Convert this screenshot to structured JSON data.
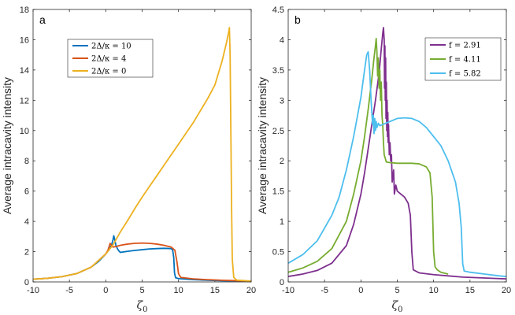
{
  "chart_data": [
    {
      "type": "line",
      "panel_label": "a",
      "ylabel": "Average intracavity intensity",
      "xlabel": "ζ0",
      "xlim": [
        -10,
        20
      ],
      "ylim": [
        0,
        18
      ],
      "xticks": [
        "-10",
        "-5",
        "0",
        "5",
        "10",
        "15",
        "20"
      ],
      "yticks": [
        "0",
        "2",
        "4",
        "6",
        "8",
        "10",
        "12",
        "14",
        "16",
        "18"
      ],
      "legend_position": "top-left",
      "series": [
        {
          "name": "2Δ/κ = 10",
          "color": "#0072BD",
          "points": [
            [
              -10,
              0.18
            ],
            [
              -8,
              0.24
            ],
            [
              -6,
              0.35
            ],
            [
              -4,
              0.55
            ],
            [
              -2,
              0.98
            ],
            [
              -1,
              1.35
            ],
            [
              0,
              1.85
            ],
            [
              0.5,
              2.15
            ],
            [
              0.8,
              2.45
            ],
            [
              1.0,
              2.8
            ],
            [
              1.1,
              3.05
            ],
            [
              1.2,
              2.85
            ],
            [
              1.4,
              2.4
            ],
            [
              1.6,
              2.2
            ],
            [
              1.8,
              2.05
            ],
            [
              2.0,
              1.95
            ],
            [
              3,
              2.02
            ],
            [
              4,
              2.08
            ],
            [
              5,
              2.13
            ],
            [
              6,
              2.18
            ],
            [
              7,
              2.2
            ],
            [
              8,
              2.22
            ],
            [
              9,
              2.2
            ],
            [
              9.2,
              2.1
            ],
            [
              9.35,
              1.6
            ],
            [
              9.45,
              0.6
            ],
            [
              9.6,
              0.28
            ],
            [
              10,
              0.22
            ],
            [
              12,
              0.15
            ],
            [
              14,
              0.11
            ],
            [
              16,
              0.08
            ],
            [
              18,
              0.06
            ],
            [
              20,
              0.05
            ]
          ]
        },
        {
          "name": "2Δ/κ = 4",
          "color": "#D95319",
          "points": [
            [
              -10,
              0.18
            ],
            [
              -8,
              0.24
            ],
            [
              -6,
              0.35
            ],
            [
              -4,
              0.55
            ],
            [
              -2,
              0.98
            ],
            [
              0,
              1.85
            ],
            [
              0.3,
              2.1
            ],
            [
              0.5,
              2.4
            ],
            [
              0.6,
              2.55
            ],
            [
              0.8,
              2.4
            ],
            [
              1.0,
              2.3
            ],
            [
              1.5,
              2.35
            ],
            [
              2,
              2.42
            ],
            [
              3,
              2.5
            ],
            [
              4,
              2.55
            ],
            [
              5,
              2.57
            ],
            [
              6,
              2.55
            ],
            [
              7,
              2.5
            ],
            [
              8,
              2.42
            ],
            [
              9,
              2.3
            ],
            [
              9.5,
              2.1
            ],
            [
              9.8,
              1.3
            ],
            [
              10.0,
              0.55
            ],
            [
              10.3,
              0.3
            ],
            [
              12,
              0.2
            ],
            [
              14,
              0.15
            ],
            [
              16,
              0.11
            ],
            [
              18,
              0.08
            ],
            [
              20,
              0.06
            ]
          ]
        },
        {
          "name": "2Δ/κ = 0",
          "color": "#EDB120",
          "points": [
            [
              -10,
              0.18
            ],
            [
              -8,
              0.24
            ],
            [
              -6,
              0.35
            ],
            [
              -4,
              0.55
            ],
            [
              -2,
              0.98
            ],
            [
              0,
              1.85
            ],
            [
              1,
              2.45
            ],
            [
              2,
              3.3
            ],
            [
              3,
              4.05
            ],
            [
              4,
              4.85
            ],
            [
              5,
              5.6
            ],
            [
              6,
              6.3
            ],
            [
              7,
              7.0
            ],
            [
              8,
              7.7
            ],
            [
              9,
              8.4
            ],
            [
              10,
              9.1
            ],
            [
              11,
              9.8
            ],
            [
              12,
              10.5
            ],
            [
              13,
              11.3
            ],
            [
              14,
              12.1
            ],
            [
              15,
              13.0
            ],
            [
              16,
              14.6
            ],
            [
              16.6,
              15.8
            ],
            [
              16.9,
              16.5
            ],
            [
              17.0,
              16.8
            ],
            [
              17.1,
              15.0
            ],
            [
              17.2,
              10.0
            ],
            [
              17.3,
              5.0
            ],
            [
              17.4,
              1.5
            ],
            [
              17.6,
              0.3
            ],
            [
              18,
              0.12
            ],
            [
              20,
              0.05
            ]
          ]
        }
      ]
    },
    {
      "type": "line",
      "panel_label": "b",
      "ylabel": "Average intracavity intensity",
      "xlabel": "ζ0",
      "xlim": [
        -10,
        20
      ],
      "ylim": [
        0,
        4.5
      ],
      "xticks": [
        "-10",
        "-5",
        "0",
        "5",
        "10",
        "15",
        "20"
      ],
      "yticks": [
        "0",
        "0.5",
        "1",
        "1.5",
        "2",
        "2.5",
        "3",
        "3.5",
        "4",
        "4.5"
      ],
      "legend_position": "top-right",
      "series": [
        {
          "name": "f = 2.91",
          "color": "#7E2F8E",
          "points": [
            [
              -10,
              0.09
            ],
            [
              -8,
              0.13
            ],
            [
              -6,
              0.19
            ],
            [
              -4,
              0.31
            ],
            [
              -2,
              0.6
            ],
            [
              -1,
              0.95
            ],
            [
              0,
              1.45
            ],
            [
              0.5,
              1.8
            ],
            [
              1,
              2.2
            ],
            [
              1.5,
              2.6
            ],
            [
              2,
              3.0
            ],
            [
              2.5,
              3.45
            ],
            [
              2.8,
              3.85
            ],
            [
              3.0,
              4.1
            ],
            [
              3.1,
              4.2
            ],
            [
              3.2,
              4.0
            ],
            [
              3.25,
              3.2
            ],
            [
              3.3,
              3.9
            ],
            [
              3.35,
              3.0
            ],
            [
              3.4,
              3.7
            ],
            [
              3.45,
              2.7
            ],
            [
              3.5,
              3.3
            ],
            [
              3.55,
              2.5
            ],
            [
              3.6,
              3.0
            ],
            [
              3.65,
              2.4
            ],
            [
              3.7,
              2.8
            ],
            [
              3.75,
              2.3
            ],
            [
              3.8,
              2.6
            ],
            [
              3.9,
              2.1
            ],
            [
              4.0,
              2.3
            ],
            [
              4.1,
              2.0
            ],
            [
              4.2,
              2.1
            ],
            [
              4.3,
              1.65
            ],
            [
              4.5,
              1.85
            ],
            [
              4.6,
              1.45
            ],
            [
              4.8,
              1.6
            ],
            [
              5.0,
              1.5
            ],
            [
              5.5,
              1.45
            ],
            [
              6,
              1.4
            ],
            [
              6.5,
              1.3
            ],
            [
              6.8,
              1.1
            ],
            [
              7.0,
              0.5
            ],
            [
              7.2,
              0.2
            ],
            [
              8,
              0.15
            ],
            [
              10,
              0.12
            ],
            [
              12,
              0.1
            ],
            [
              14,
              0.08
            ],
            [
              16,
              0.07
            ],
            [
              18,
              0.06
            ],
            [
              20,
              0.05
            ]
          ]
        },
        {
          "name": "f = 4.11",
          "color": "#77AC30",
          "points": [
            [
              -10,
              0.16
            ],
            [
              -8,
              0.23
            ],
            [
              -6,
              0.34
            ],
            [
              -4,
              0.55
            ],
            [
              -2,
              1.0
            ],
            [
              -1,
              1.45
            ],
            [
              0,
              2.0
            ],
            [
              0.5,
              2.4
            ],
            [
              1,
              2.85
            ],
            [
              1.5,
              3.35
            ],
            [
              1.8,
              3.7
            ],
            [
              2.0,
              3.9
            ],
            [
              2.1,
              4.02
            ],
            [
              2.2,
              3.8
            ],
            [
              2.3,
              3.4
            ],
            [
              2.4,
              3.7
            ],
            [
              2.5,
              3.2
            ],
            [
              2.6,
              3.5
            ],
            [
              2.7,
              3.0
            ],
            [
              2.8,
              3.3
            ],
            [
              2.9,
              2.75
            ],
            [
              3.0,
              2.6
            ],
            [
              3.1,
              2.3
            ],
            [
              3.2,
              2.1
            ],
            [
              3.5,
              1.98
            ],
            [
              4,
              1.97
            ],
            [
              5,
              1.96
            ],
            [
              6,
              1.96
            ],
            [
              7,
              1.96
            ],
            [
              8,
              1.95
            ],
            [
              9,
              1.9
            ],
            [
              9.5,
              1.8
            ],
            [
              9.8,
              1.4
            ],
            [
              10.0,
              0.5
            ],
            [
              10.2,
              0.25
            ],
            [
              10.5,
              0.2
            ],
            [
              11,
              0.16
            ],
            [
              12,
              0.13
            ]
          ]
        },
        {
          "name": "f = 5.82",
          "color": "#4DBEEE",
          "points": [
            [
              -10,
              0.31
            ],
            [
              -8,
              0.45
            ],
            [
              -6,
              0.68
            ],
            [
              -4,
              1.1
            ],
            [
              -3,
              1.4
            ],
            [
              -2,
              1.85
            ],
            [
              -1,
              2.4
            ],
            [
              0,
              3.05
            ],
            [
              0.5,
              3.5
            ],
            [
              0.8,
              3.75
            ],
            [
              1.0,
              3.8
            ],
            [
              1.2,
              3.5
            ],
            [
              1.4,
              3.0
            ],
            [
              1.6,
              2.6
            ],
            [
              1.7,
              2.75
            ],
            [
              1.8,
              2.45
            ],
            [
              1.9,
              2.7
            ],
            [
              2.0,
              2.5
            ],
            [
              2.1,
              2.65
            ],
            [
              2.2,
              2.55
            ],
            [
              2.4,
              2.62
            ],
            [
              2.6,
              2.58
            ],
            [
              3,
              2.6
            ],
            [
              4,
              2.65
            ],
            [
              5,
              2.7
            ],
            [
              6,
              2.71
            ],
            [
              7,
              2.7
            ],
            [
              8,
              2.65
            ],
            [
              9,
              2.55
            ],
            [
              10,
              2.4
            ],
            [
              11,
              2.25
            ],
            [
              12,
              2.0
            ],
            [
              13,
              1.65
            ],
            [
              13.5,
              1.3
            ],
            [
              13.8,
              0.9
            ],
            [
              14.0,
              0.3
            ],
            [
              14.2,
              0.18
            ],
            [
              15,
              0.16
            ],
            [
              17,
              0.13
            ],
            [
              19,
              0.1
            ],
            [
              20,
              0.09
            ]
          ]
        }
      ]
    }
  ]
}
